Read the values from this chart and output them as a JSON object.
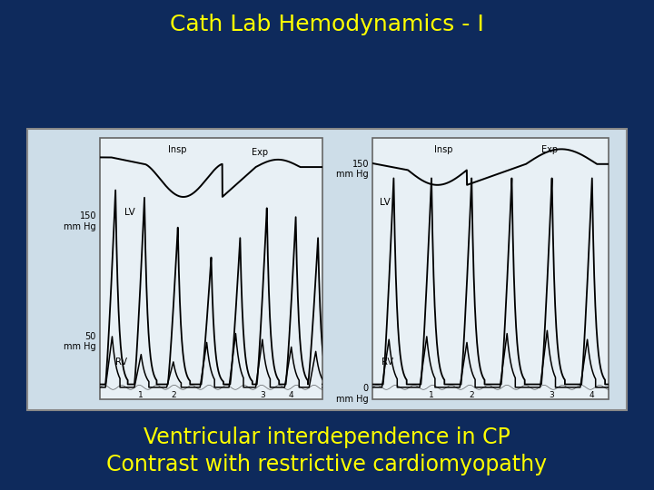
{
  "title": "Cath Lab Hemodynamics - I",
  "title_color": "#ffff00",
  "title_fontsize": 18,
  "subtitle_line1": "Ventricular interdependence in CP",
  "subtitle_line2": "Contrast with restrictive cardiomyopathy",
  "subtitle_color": "#ffff00",
  "subtitle_fontsize": 17,
  "bg_color": "#0e2a5c",
  "panel_bg": "#cddde8",
  "panel_border": "#888888",
  "graph_bg": "#e8f0f5",
  "graph_border": "#666666"
}
